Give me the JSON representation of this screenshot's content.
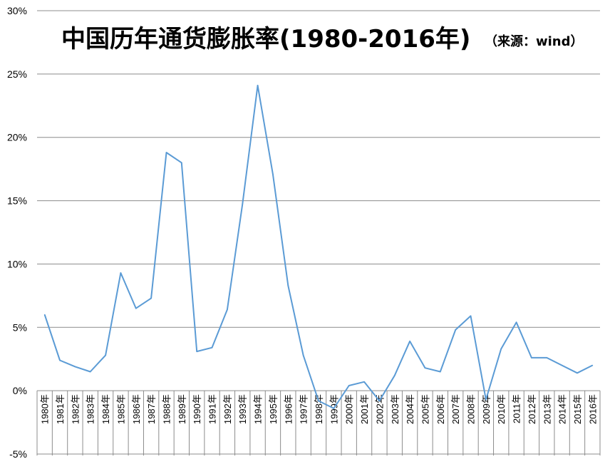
{
  "chart_data": {
    "type": "line",
    "title": "中国历年通货膨胀率(1980-2016年)",
    "subtitle": "（来源：wind）",
    "ylim": [
      -5,
      30
    ],
    "y_ticks": [
      {
        "value": 30,
        "label": "30%"
      },
      {
        "value": 25,
        "label": "25%"
      },
      {
        "value": 20,
        "label": "20%"
      },
      {
        "value": 15,
        "label": "15%"
      },
      {
        "value": 10,
        "label": "10%"
      },
      {
        "value": 5,
        "label": "5%"
      },
      {
        "value": 0,
        "label": "0%"
      },
      {
        "value": -5,
        "label": "-5%"
      }
    ],
    "grid": true,
    "legend": "none",
    "line_color": "#5b9bd5",
    "categories": [
      "1980年",
      "1981年",
      "1982年",
      "1983年",
      "1984年",
      "1985年",
      "1986年",
      "1987年",
      "1988年",
      "1989年",
      "1990年",
      "1991年",
      "1992年",
      "1993年",
      "1994年",
      "1995年",
      "1996年",
      "1997年",
      "1998年",
      "1999年",
      "2000年",
      "2001年",
      "2002年",
      "2003年",
      "2004年",
      "2005年",
      "2006年",
      "2007年",
      "2008年",
      "2009年",
      "2010年",
      "2011年",
      "2012年",
      "2013年",
      "2014年",
      "2015年",
      "2016年"
    ],
    "values": [
      6.0,
      2.4,
      1.9,
      1.5,
      2.8,
      9.3,
      6.5,
      7.3,
      18.8,
      18.0,
      3.1,
      3.4,
      6.4,
      14.7,
      24.1,
      17.1,
      8.3,
      2.8,
      -0.8,
      -1.4,
      0.4,
      0.7,
      -0.8,
      1.2,
      3.9,
      1.8,
      1.5,
      4.8,
      5.9,
      -0.7,
      3.3,
      5.4,
      2.6,
      2.6,
      2.0,
      1.4,
      2.0
    ]
  }
}
